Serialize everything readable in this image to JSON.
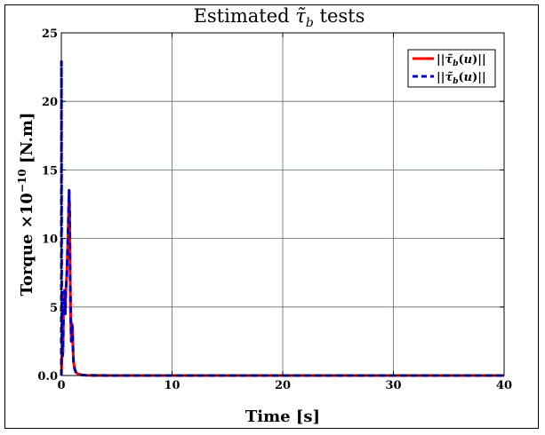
{
  "chart_data": {
    "type": "line",
    "title": "Estimated τ̃_b tests",
    "title_main": "Estimated ",
    "title_symbol": "τ̃",
    "title_sub": "b",
    "title_tail": " tests",
    "xlabel": "Time [s]",
    "ylabel_main": "Torque ×10",
    "ylabel_exp": "−10",
    "ylabel_unit": " [N.m]",
    "xlim": [
      0,
      40
    ],
    "ylim": [
      0,
      25
    ],
    "xticks": [
      0,
      10,
      20,
      30,
      40
    ],
    "xtick_labels": [
      "0",
      "10",
      "20",
      "30",
      "40"
    ],
    "yticks": [
      0,
      5,
      10,
      15,
      20,
      25
    ],
    "ytick_labels": [
      "0.0",
      "5",
      "10",
      "15",
      "20",
      "25"
    ],
    "grid": true,
    "legend_position": "top-right",
    "series": [
      {
        "name": "||τ̃_b(u)||",
        "legend_label": "||τ̃b(u)||",
        "color": "#ff0000",
        "style": "solid",
        "x": [
          0,
          0.02,
          0.05,
          0.1,
          0.15,
          0.2,
          0.25,
          0.3,
          0.35,
          0.4,
          0.5,
          0.6,
          0.7,
          0.75,
          0.8,
          0.85,
          0.9,
          0.95,
          1.0,
          1.05,
          1.1,
          1.2,
          1.3,
          1.5,
          1.8,
          2.2,
          3,
          5,
          10,
          20,
          30,
          40
        ],
        "values": [
          0,
          0.5,
          1.5,
          1.4,
          1.8,
          5.0,
          5.8,
          6.2,
          4.5,
          6.0,
          7.5,
          10.2,
          13.5,
          12.0,
          7.0,
          4.0,
          2.5,
          3.8,
          3.5,
          2.0,
          1.0,
          0.5,
          0.25,
          0.12,
          0.05,
          0.02,
          0.01,
          0,
          0,
          0,
          0,
          0
        ]
      },
      {
        "name": "||τ̃_b(u)||",
        "legend_label": "||τ̃b(u)||",
        "color": "#0000cc",
        "style": "dashed",
        "x": [
          0,
          0.01,
          0.03,
          0.05,
          0.08,
          0.1,
          0.15,
          0.2,
          0.25,
          0.3,
          0.35,
          0.4,
          0.5,
          0.6,
          0.7,
          0.75,
          0.8,
          0.85,
          0.9,
          0.95,
          1.0,
          1.05,
          1.1,
          1.2,
          1.3,
          1.5,
          1.8,
          2.2,
          3,
          5,
          10,
          20,
          30,
          40
        ],
        "values": [
          0,
          22.9,
          8.0,
          3.0,
          1.5,
          1.4,
          1.8,
          5.0,
          5.8,
          6.2,
          4.5,
          6.0,
          7.5,
          10.2,
          13.5,
          12.0,
          7.0,
          4.0,
          2.5,
          3.8,
          3.5,
          2.0,
          1.0,
          0.5,
          0.25,
          0.12,
          0.05,
          0.02,
          0.01,
          0,
          0,
          0,
          0,
          0
        ]
      }
    ],
    "colors": {
      "grid": "#5a6e5a",
      "axis": "#000000"
    }
  }
}
